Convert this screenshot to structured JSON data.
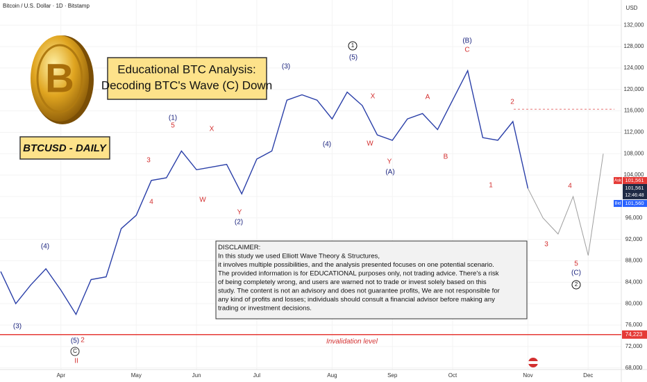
{
  "chart_data": {
    "type": "line",
    "title": "Bitcoin / U.S. Dollar · 1D · Bitstamp",
    "y_unit": "USD",
    "logo_text": "B",
    "headline": [
      "Educational BTC Analysis:",
      "Decoding BTC's Wave (C) Down"
    ],
    "symbol_label": "BTCUSD - DAILY",
    "categories": [
      null,
      null,
      null,
      null,
      "Apr",
      null,
      null,
      null,
      null,
      "May",
      null,
      null,
      null,
      "Jun",
      null,
      null,
      null,
      "Jul",
      null,
      null,
      null,
      null,
      "Aug",
      null,
      null,
      null,
      "Sep",
      null,
      null,
      null,
      "Oct",
      null,
      null,
      null,
      null,
      "Nov",
      null,
      null,
      null,
      "Dec",
      null
    ],
    "series": [
      {
        "color": "#2a3fa8",
        "values": [
          86000,
          80000,
          83500,
          86500,
          82500,
          78000,
          84500,
          85000,
          94000,
          96500,
          103000,
          103500,
          108500,
          105000,
          105500,
          106000,
          100500,
          107000,
          108500,
          118000,
          119000,
          118000,
          114500,
          119500,
          117000,
          111500,
          110500,
          114500,
          115500,
          112500,
          118000,
          123500,
          111000,
          110500,
          114000,
          101500,
          null,
          null,
          null,
          null,
          null
        ]
      },
      {
        "color": "#9e9e9e",
        "values": [
          null,
          null,
          null,
          null,
          null,
          null,
          null,
          null,
          null,
          null,
          null,
          null,
          null,
          null,
          null,
          null,
          null,
          null,
          null,
          null,
          null,
          null,
          null,
          null,
          null,
          null,
          null,
          null,
          null,
          null,
          null,
          null,
          null,
          null,
          null,
          101500,
          96000,
          93000,
          100000,
          89000,
          108000
        ]
      }
    ],
    "ylim": [
      67700,
      136700
    ],
    "yticks": [
      {
        "value": 68000,
        "label": "68,000"
      },
      {
        "value": 72000,
        "label": "72,000"
      },
      {
        "value": 76000,
        "label": "76,000"
      },
      {
        "value": 80000,
        "label": "80,000"
      },
      {
        "value": 84000,
        "label": "84,000"
      },
      {
        "value": 88000,
        "label": "88,000"
      },
      {
        "value": 92000,
        "label": "92,000"
      },
      {
        "value": 96000,
        "label": "96,000"
      },
      {
        "value": 100000,
        "label": "100,000"
      },
      {
        "value": 104000,
        "label": "104,000"
      },
      {
        "value": 108000,
        "label": "108,000"
      },
      {
        "value": 112000,
        "label": "112,000"
      },
      {
        "value": 116000,
        "label": "116,000"
      },
      {
        "value": 120000,
        "label": "120,000"
      },
      {
        "value": 124000,
        "label": "124,000"
      },
      {
        "value": 128000,
        "label": "128,000"
      },
      {
        "value": 132000,
        "label": "132,000"
      }
    ],
    "dotted_level": 116300,
    "invalidation": {
      "value": 74223,
      "label": "74,223",
      "text": "Invalidation level"
    },
    "ask": {
      "tag": "Ask",
      "value": 101561,
      "label": "101,561"
    },
    "last": {
      "value": 101561,
      "label": "101,561",
      "countdown": "12:46:48"
    },
    "bid": {
      "tag": "Bid",
      "value": 101560,
      "label": "101,560"
    },
    "annotations": [
      {
        "text": "(3)",
        "color": "#1a237e"
      },
      {
        "text": "(4)",
        "color": "#1a237e"
      },
      {
        "text": "(5)",
        "color": "#1a237e"
      },
      {
        "text": "2",
        "color": "#d32f2f"
      },
      {
        "text": "C",
        "color": "#d32f2f",
        "circled": true
      },
      {
        "text": "II",
        "color": "#d32f2f"
      },
      {
        "text": "(1)",
        "color": "#1a237e"
      },
      {
        "text": "5",
        "color": "#d32f2f"
      },
      {
        "text": "3",
        "color": "#d32f2f"
      },
      {
        "text": "4",
        "color": "#d32f2f"
      },
      {
        "text": "X",
        "color": "#d32f2f"
      },
      {
        "text": "W",
        "color": "#d32f2f"
      },
      {
        "text": "Y",
        "color": "#d32f2f"
      },
      {
        "text": "(2)",
        "color": "#1a237e"
      },
      {
        "text": "(3)",
        "color": "#1a237e"
      },
      {
        "text": "1",
        "color": "#111",
        "circled": true
      },
      {
        "text": "(5)",
        "color": "#1a237e"
      },
      {
        "text": "(4)",
        "color": "#1a237e"
      },
      {
        "text": "X",
        "color": "#d32f2f"
      },
      {
        "text": "W",
        "color": "#d32f2f"
      },
      {
        "text": "Y",
        "color": "#d32f2f"
      },
      {
        "text": "(A)",
        "color": "#1a237e"
      },
      {
        "text": "A",
        "color": "#d32f2f"
      },
      {
        "text": "B",
        "color": "#d32f2f"
      },
      {
        "text": "(B)",
        "color": "#1a237e"
      },
      {
        "text": "C",
        "color": "#d32f2f"
      },
      {
        "text": "1",
        "color": "#d32f2f"
      },
      {
        "text": "2",
        "color": "#d32f2f"
      },
      {
        "text": "3",
        "color": "#d32f2f"
      },
      {
        "text": "4",
        "color": "#d32f2f"
      },
      {
        "text": "5",
        "color": "#d32f2f"
      },
      {
        "text": "(C)",
        "color": "#1a237e"
      },
      {
        "text": "2",
        "color": "#111",
        "circled": true
      }
    ],
    "disclaimer": [
      "DISCLAIMER:",
      "In this study we used Elliott Wave Theory & Structures,",
      "it involves multiple possibilities, and the analysis presented focuses on one potential scenario.",
      "The provided information is for EDUCATIONAL purposes only, not trading advice. There's a risk",
      "of being completely wrong, and users are warned not to trade or invest solely based on this",
      "study. The content is not an advisory and does not guarantee profits, We are not responsible for",
      "any kind of profits and losses; individuals should consult a financial advisor before making any",
      "trading or investment decisions."
    ]
  }
}
